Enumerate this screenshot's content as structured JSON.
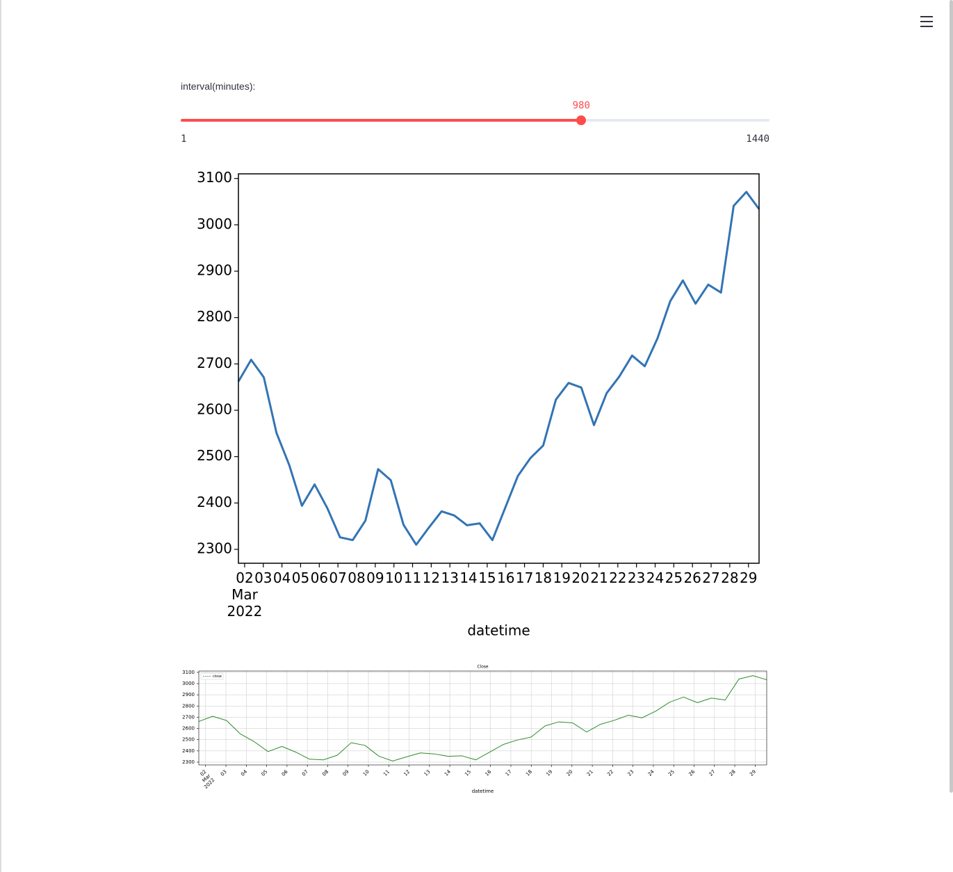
{
  "slider": {
    "label": "interval(minutes):",
    "value": 980,
    "min": 1,
    "max": 1440
  },
  "chart_data": [
    {
      "type": "line",
      "x_label": "datetime",
      "color": "#3274b4",
      "x": [
        "2022-03-01T16:00",
        "2022-03-02T08:20",
        "2022-03-03T00:40",
        "2022-03-03T17:00",
        "2022-03-04T09:20",
        "2022-03-05T01:40",
        "2022-03-05T18:00",
        "2022-03-06T10:20",
        "2022-03-07T02:40",
        "2022-03-07T19:00",
        "2022-03-08T11:20",
        "2022-03-09T03:40",
        "2022-03-09T20:00",
        "2022-03-10T12:20",
        "2022-03-11T04:40",
        "2022-03-11T21:00",
        "2022-03-12T13:20",
        "2022-03-13T05:40",
        "2022-03-13T22:00",
        "2022-03-14T14:20",
        "2022-03-15T06:40",
        "2022-03-15T23:00",
        "2022-03-16T15:20",
        "2022-03-17T07:40",
        "2022-03-18T00:00",
        "2022-03-18T16:20",
        "2022-03-19T08:40",
        "2022-03-20T01:00",
        "2022-03-20T17:20",
        "2022-03-21T09:40",
        "2022-03-22T02:00",
        "2022-03-22T18:20",
        "2022-03-23T10:40",
        "2022-03-24T03:00",
        "2022-03-24T19:20",
        "2022-03-25T11:40",
        "2022-03-26T04:00",
        "2022-03-26T20:20",
        "2022-03-27T12:40",
        "2022-03-28T05:00",
        "2022-03-28T21:20",
        "2022-03-29T13:40"
      ],
      "values": [
        2662,
        2709,
        2671,
        2551,
        2482,
        2394,
        2440,
        2389,
        2326,
        2320,
        2362,
        2473,
        2449,
        2353,
        2310,
        2347,
        2382,
        2373,
        2352,
        2356,
        2320,
        2389,
        2458,
        2497,
        2524,
        2623,
        2659,
        2649,
        2568,
        2637,
        2673,
        2718,
        2695,
        2755,
        2835,
        2880,
        2830,
        2871,
        2854,
        3041,
        3071,
        3034
      ],
      "xlim": [
        "2022-03-01T16:00",
        "2022-03-29T13:40"
      ],
      "xticks": [
        {
          "value": "2022-03-02",
          "label": "02 Mar 2022"
        },
        {
          "value": "2022-03-03",
          "label": "03"
        },
        {
          "value": "2022-03-04",
          "label": "04"
        },
        {
          "value": "2022-03-05",
          "label": "05"
        },
        {
          "value": "2022-03-06",
          "label": "06"
        },
        {
          "value": "2022-03-07",
          "label": "07"
        },
        {
          "value": "2022-03-08",
          "label": "08"
        },
        {
          "value": "2022-03-09",
          "label": "09"
        },
        {
          "value": "2022-03-10",
          "label": "10"
        },
        {
          "value": "2022-03-11",
          "label": "11"
        },
        {
          "value": "2022-03-12",
          "label": "12"
        },
        {
          "value": "2022-03-13",
          "label": "13"
        },
        {
          "value": "2022-03-14",
          "label": "14"
        },
        {
          "value": "2022-03-15",
          "label": "15"
        },
        {
          "value": "2022-03-16",
          "label": "16"
        },
        {
          "value": "2022-03-17",
          "label": "17"
        },
        {
          "value": "2022-03-18",
          "label": "18"
        },
        {
          "value": "2022-03-19",
          "label": "19"
        },
        {
          "value": "2022-03-20",
          "label": "20"
        },
        {
          "value": "2022-03-21",
          "label": "21"
        },
        {
          "value": "2022-03-22",
          "label": "22"
        },
        {
          "value": "2022-03-23",
          "label": "23"
        },
        {
          "value": "2022-03-24",
          "label": "24"
        },
        {
          "value": "2022-03-25",
          "label": "25"
        },
        {
          "value": "2022-03-26",
          "label": "26"
        },
        {
          "value": "2022-03-27",
          "label": "27"
        },
        {
          "value": "2022-03-28",
          "label": "28"
        },
        {
          "value": "2022-03-29",
          "label": "29"
        }
      ],
      "ylim": [
        2270,
        3110
      ],
      "yticks": [
        2300,
        2400,
        2500,
        2600,
        2700,
        2800,
        2900,
        3000,
        3100
      ],
      "grid": false
    },
    {
      "type": "line",
      "title": "Close",
      "x_label": "datetime",
      "legend": "upper left",
      "x": [
        "2022-03-01T16:00",
        "2022-03-02T08:20",
        "2022-03-03T00:40",
        "2022-03-03T17:00",
        "2022-03-04T09:20",
        "2022-03-05T01:40",
        "2022-03-05T18:00",
        "2022-03-06T10:20",
        "2022-03-07T02:40",
        "2022-03-07T19:00",
        "2022-03-08T11:20",
        "2022-03-09T03:40",
        "2022-03-09T20:00",
        "2022-03-10T12:20",
        "2022-03-11T04:40",
        "2022-03-11T21:00",
        "2022-03-12T13:20",
        "2022-03-13T05:40",
        "2022-03-13T22:00",
        "2022-03-14T14:20",
        "2022-03-15T06:40",
        "2022-03-15T23:00",
        "2022-03-16T15:20",
        "2022-03-17T07:40",
        "2022-03-18T00:00",
        "2022-03-18T16:20",
        "2022-03-19T08:40",
        "2022-03-20T01:00",
        "2022-03-20T17:20",
        "2022-03-21T09:40",
        "2022-03-22T02:00",
        "2022-03-22T18:20",
        "2022-03-23T10:40",
        "2022-03-24T03:00",
        "2022-03-24T19:20",
        "2022-03-25T11:40",
        "2022-03-26T04:00",
        "2022-03-26T20:20",
        "2022-03-27T12:40",
        "2022-03-28T05:00",
        "2022-03-28T21:20",
        "2022-03-29T13:40"
      ],
      "series": [
        {
          "name": "close",
          "color": "#2e8b2e",
          "values": [
            2662,
            2709,
            2671,
            2551,
            2482,
            2394,
            2440,
            2389,
            2326,
            2320,
            2362,
            2473,
            2449,
            2353,
            2310,
            2347,
            2382,
            2373,
            2352,
            2356,
            2320,
            2389,
            2458,
            2497,
            2524,
            2623,
            2659,
            2649,
            2568,
            2637,
            2673,
            2718,
            2695,
            2755,
            2835,
            2880,
            2830,
            2871,
            2854,
            3041,
            3071,
            3034
          ]
        }
      ],
      "xlim": [
        "2022-03-01T16:00",
        "2022-03-29T13:40"
      ],
      "xticks": [
        {
          "value": "2022-03-02",
          "label": "02 Mar 2022"
        },
        {
          "value": "2022-03-03",
          "label": "03"
        },
        {
          "value": "2022-03-04",
          "label": "04"
        },
        {
          "value": "2022-03-05",
          "label": "05"
        },
        {
          "value": "2022-03-06",
          "label": "06"
        },
        {
          "value": "2022-03-07",
          "label": "07"
        },
        {
          "value": "2022-03-08",
          "label": "08"
        },
        {
          "value": "2022-03-09",
          "label": "09"
        },
        {
          "value": "2022-03-10",
          "label": "10"
        },
        {
          "value": "2022-03-11",
          "label": "11"
        },
        {
          "value": "2022-03-12",
          "label": "12"
        },
        {
          "value": "2022-03-13",
          "label": "13"
        },
        {
          "value": "2022-03-14",
          "label": "14"
        },
        {
          "value": "2022-03-15",
          "label": "15"
        },
        {
          "value": "2022-03-16",
          "label": "16"
        },
        {
          "value": "2022-03-17",
          "label": "17"
        },
        {
          "value": "2022-03-18",
          "label": "18"
        },
        {
          "value": "2022-03-19",
          "label": "19"
        },
        {
          "value": "2022-03-20",
          "label": "20"
        },
        {
          "value": "2022-03-21",
          "label": "21"
        },
        {
          "value": "2022-03-22",
          "label": "22"
        },
        {
          "value": "2022-03-23",
          "label": "23"
        },
        {
          "value": "2022-03-24",
          "label": "24"
        },
        {
          "value": "2022-03-25",
          "label": "25"
        },
        {
          "value": "2022-03-26",
          "label": "26"
        },
        {
          "value": "2022-03-27",
          "label": "27"
        },
        {
          "value": "2022-03-28",
          "label": "28"
        },
        {
          "value": "2022-03-29",
          "label": "29"
        }
      ],
      "ylim": [
        2275,
        3112
      ],
      "yticks": [
        2300,
        2400,
        2500,
        2600,
        2700,
        2800,
        2900,
        3000,
        3100
      ],
      "grid": true
    }
  ]
}
